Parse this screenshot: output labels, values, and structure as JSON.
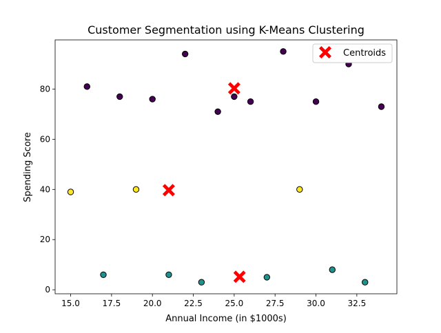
{
  "chart_data": {
    "type": "scatter",
    "title": "Customer Segmentation using K-Means Clustering",
    "xlabel": "Annual Income (in $1000s)",
    "ylabel": "Spending Score",
    "xlim": [
      14.05,
      34.95
    ],
    "ylim": [
      -1.6,
      99.6
    ],
    "xticks": [
      15.0,
      17.5,
      20.0,
      22.5,
      25.0,
      27.5,
      30.0,
      32.5
    ],
    "xtick_labels": [
      "15.0",
      "17.5",
      "20.0",
      "22.5",
      "25.0",
      "27.5",
      "30.0",
      "32.5"
    ],
    "yticks": [
      0,
      20,
      40,
      60,
      80
    ],
    "ytick_labels": [
      "0",
      "20",
      "40",
      "60",
      "80"
    ],
    "grid": false,
    "legend_position": "upper-right",
    "colors": {
      "cluster_0": "#440154",
      "cluster_1": "#21918c",
      "cluster_2": "#fde725",
      "centroid": "#ff0000",
      "point_edge": "#000000"
    },
    "points": [
      {
        "x": 15,
        "y": 39,
        "cluster": 2
      },
      {
        "x": 16,
        "y": 81,
        "cluster": 0
      },
      {
        "x": 17,
        "y": 6,
        "cluster": 1
      },
      {
        "x": 18,
        "y": 77,
        "cluster": 0
      },
      {
        "x": 19,
        "y": 40,
        "cluster": 2
      },
      {
        "x": 20,
        "y": 76,
        "cluster": 0
      },
      {
        "x": 21,
        "y": 6,
        "cluster": 1
      },
      {
        "x": 22,
        "y": 94,
        "cluster": 0
      },
      {
        "x": 23,
        "y": 3,
        "cluster": 1
      },
      {
        "x": 24,
        "y": 71,
        "cluster": 0
      },
      {
        "x": 25,
        "y": 77,
        "cluster": 0
      },
      {
        "x": 26,
        "y": 75,
        "cluster": 0
      },
      {
        "x": 27,
        "y": 5,
        "cluster": 1
      },
      {
        "x": 28,
        "y": 95,
        "cluster": 0
      },
      {
        "x": 29,
        "y": 40,
        "cluster": 2
      },
      {
        "x": 30,
        "y": 75,
        "cluster": 0
      },
      {
        "x": 31,
        "y": 8,
        "cluster": 1
      },
      {
        "x": 32,
        "y": 90,
        "cluster": 0
      },
      {
        "x": 33,
        "y": 3,
        "cluster": 1
      },
      {
        "x": 34,
        "y": 73,
        "cluster": 0
      }
    ],
    "centroids": {
      "name": "Centroids",
      "points": [
        {
          "x": 25.0,
          "y": 80.3
        },
        {
          "x": 21.0,
          "y": 39.7
        },
        {
          "x": 25.33,
          "y": 5.17
        }
      ]
    }
  }
}
